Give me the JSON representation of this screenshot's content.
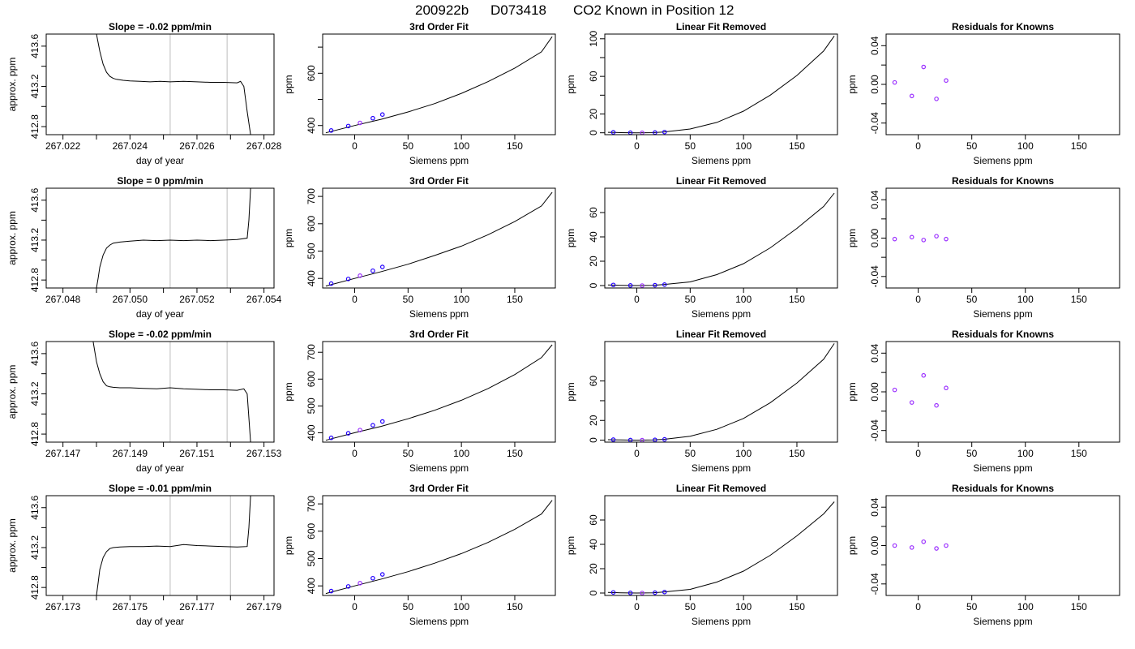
{
  "figure": {
    "title_parts": [
      "200922b",
      "D073418",
      "CO2 Known in Position  12"
    ],
    "colors": {
      "axis": "#000000",
      "line": "#000000",
      "point": "#2200ff",
      "point_alt": "#9b30ff",
      "vline": "#c8c8c8",
      "highlight": "#ff6060"
    }
  },
  "chart_data": [
    {
      "type": "line",
      "title": "Slope =  -0.02  ppm/min",
      "xlabel": "day of year",
      "ylabel": "approx. ppm",
      "xlim": [
        267.0215,
        267.0283
      ],
      "ylim": [
        412.72,
        413.72
      ],
      "xticks": [
        267.022,
        267.023,
        267.024,
        267.025,
        267.026,
        267.027,
        267.028
      ],
      "xtick_labels": [
        "267.022",
        "",
        "267.024",
        "",
        "267.026",
        "",
        "267.028"
      ],
      "yticks": [
        412.8,
        413.0,
        413.2,
        413.4,
        413.6
      ],
      "ytick_labels": [
        "412.8",
        "",
        "413.2",
        "",
        "413.6"
      ],
      "vlines": [
        267.0252,
        267.0269
      ],
      "series": [
        {
          "x": [
            267.023,
            267.0231,
            267.0232,
            267.0233,
            267.0234,
            267.0235,
            267.0236,
            267.0238,
            267.024,
            267.0243,
            267.0246,
            267.0249,
            267.0252,
            267.0256,
            267.026,
            267.0264,
            267.0268,
            267.0272,
            267.0273,
            267.0274,
            267.0275,
            267.0276
          ],
          "y": [
            413.72,
            413.55,
            413.42,
            413.34,
            413.3,
            413.28,
            413.27,
            413.26,
            413.255,
            413.25,
            413.245,
            413.25,
            413.245,
            413.25,
            413.245,
            413.24,
            413.24,
            413.235,
            413.25,
            413.2,
            412.95,
            412.72
          ]
        }
      ]
    },
    {
      "type": "line",
      "title": "3rd Order Fit",
      "xlabel": "Siemens ppm",
      "ylabel": "ppm",
      "xlim": [
        -30,
        188
      ],
      "ylim": [
        365,
        750
      ],
      "xticks": [
        0,
        50,
        100,
        150
      ],
      "yticks": [
        400,
        500,
        600,
        700
      ],
      "ytick_labels": [
        "400",
        "",
        "600",
        ""
      ],
      "series": [
        {
          "x": [
            -27,
            0,
            25,
            50,
            75,
            100,
            125,
            150,
            175,
            185
          ],
          "y": [
            372,
            400,
            424,
            452,
            484,
            523,
            568,
            620,
            682,
            740
          ]
        }
      ],
      "points": {
        "x": [
          -22,
          -6,
          5,
          17,
          26
        ],
        "y": [
          381,
          398,
          410,
          428,
          442
        ]
      }
    },
    {
      "type": "line",
      "title": "Linear Fit Removed",
      "xlabel": "Siemens ppm",
      "ylabel": "ppm",
      "xlim": [
        -30,
        188
      ],
      "ylim": [
        -2,
        105
      ],
      "xticks": [
        0,
        50,
        100,
        150
      ],
      "yticks": [
        0,
        20,
        40,
        60,
        80,
        100
      ],
      "ytick_labels": [
        "0",
        "20",
        "",
        "60",
        "",
        "100"
      ],
      "series": [
        {
          "x": [
            -27,
            -15,
            0,
            15,
            25,
            50,
            75,
            100,
            125,
            150,
            175,
            185
          ],
          "y": [
            0.5,
            0.2,
            0,
            0.2,
            0.8,
            4,
            11,
            23,
            40,
            61,
            87,
            103
          ]
        }
      ],
      "points": {
        "x": [
          -22,
          -6,
          5,
          17,
          26
        ],
        "y": [
          0.5,
          0.1,
          0,
          0.3,
          0.8
        ]
      }
    },
    {
      "type": "scatter",
      "title": "Residuals for Knowns",
      "xlabel": "Siemens ppm",
      "ylabel": "ppm",
      "xlim": [
        -30,
        188
      ],
      "ylim": [
        -0.052,
        0.052
      ],
      "xticks": [
        0,
        50,
        100,
        150
      ],
      "yticks": [
        -0.04,
        -0.02,
        0.0,
        0.02,
        0.04
      ],
      "ytick_labels": [
        "-0.04",
        "",
        "0.00",
        "",
        "0.04"
      ],
      "points": {
        "x": [
          -22,
          -6,
          5,
          17,
          26
        ],
        "y": [
          0.002,
          -0.012,
          0.018,
          -0.015,
          0.004
        ]
      }
    },
    {
      "type": "line",
      "title": "Slope =  0  ppm/min",
      "xlabel": "day of year",
      "ylabel": "approx. ppm",
      "xlim": [
        267.0475,
        267.0543
      ],
      "ylim": [
        412.72,
        413.72
      ],
      "xticks": [
        267.048,
        267.049,
        267.05,
        267.051,
        267.052,
        267.053,
        267.054
      ],
      "xtick_labels": [
        "267.048",
        "",
        "267.050",
        "",
        "267.052",
        "",
        "267.054"
      ],
      "yticks": [
        412.8,
        413.0,
        413.2,
        413.4,
        413.6
      ],
      "ytick_labels": [
        "412.8",
        "",
        "413.2",
        "",
        "413.6"
      ],
      "vlines": [
        267.0512,
        267.0529
      ],
      "series": [
        {
          "x": [
            267.049,
            267.04905,
            267.0491,
            267.0492,
            267.0493,
            267.0494,
            267.0495,
            267.0497,
            267.05,
            267.0504,
            267.0508,
            267.0512,
            267.0516,
            267.052,
            267.0524,
            267.0528,
            267.0532,
            267.0535,
            267.05355,
            267.0536
          ],
          "y": [
            412.72,
            412.82,
            412.93,
            413.05,
            413.12,
            413.15,
            413.17,
            413.18,
            413.19,
            413.2,
            413.195,
            413.2,
            413.195,
            413.2,
            413.195,
            413.2,
            413.205,
            413.22,
            413.4,
            413.72
          ]
        }
      ]
    },
    {
      "type": "line",
      "title": "3rd Order Fit",
      "xlabel": "Siemens ppm",
      "ylabel": "ppm",
      "xlim": [
        -30,
        188
      ],
      "ylim": [
        365,
        730
      ],
      "xticks": [
        0,
        50,
        100,
        150
      ],
      "yticks": [
        400,
        500,
        600,
        700
      ],
      "series": [
        {
          "x": [
            -27,
            0,
            25,
            50,
            75,
            100,
            125,
            150,
            175,
            185
          ],
          "y": [
            372,
            400,
            425,
            452,
            484,
            518,
            560,
            608,
            665,
            715
          ]
        }
      ],
      "points": {
        "x": [
          -22,
          -6,
          5,
          17,
          26
        ],
        "y": [
          381,
          398,
          410,
          428,
          442
        ]
      }
    },
    {
      "type": "line",
      "title": "Linear Fit Removed",
      "xlabel": "Siemens ppm",
      "ylabel": "ppm",
      "xlim": [
        -30,
        188
      ],
      "ylim": [
        -2,
        80
      ],
      "xticks": [
        0,
        50,
        100,
        150
      ],
      "yticks": [
        0,
        20,
        40,
        60
      ],
      "series": [
        {
          "x": [
            -27,
            -15,
            0,
            15,
            25,
            50,
            75,
            100,
            125,
            150,
            175,
            185
          ],
          "y": [
            0.5,
            0.2,
            0,
            0.2,
            0.8,
            3,
            9,
            18,
            31,
            47,
            65,
            76
          ]
        }
      ],
      "points": {
        "x": [
          -22,
          -6,
          5,
          17,
          26
        ],
        "y": [
          0.5,
          0.1,
          0,
          0.3,
          0.8
        ]
      }
    },
    {
      "type": "scatter",
      "title": "Residuals for Knowns",
      "xlabel": "Siemens ppm",
      "ylabel": "ppm",
      "xlim": [
        -30,
        188
      ],
      "ylim": [
        -0.052,
        0.052
      ],
      "xticks": [
        0,
        50,
        100,
        150
      ],
      "yticks": [
        -0.04,
        -0.02,
        0.0,
        0.02,
        0.04
      ],
      "ytick_labels": [
        "-0.04",
        "",
        "0.00",
        "",
        "0.04"
      ],
      "points": {
        "x": [
          -22,
          -6,
          5,
          17,
          26
        ],
        "y": [
          -0.001,
          0.001,
          -0.002,
          0.002,
          -0.001
        ]
      }
    },
    {
      "type": "line",
      "title": "Slope =  -0.02  ppm/min",
      "xlabel": "day of year",
      "ylabel": "approx. ppm",
      "xlim": [
        267.1465,
        267.1533
      ],
      "ylim": [
        412.72,
        413.72
      ],
      "xticks": [
        267.147,
        267.148,
        267.149,
        267.15,
        267.151,
        267.152,
        267.153
      ],
      "xtick_labels": [
        "267.147",
        "",
        "267.149",
        "",
        "267.151",
        "",
        "267.153"
      ],
      "yticks": [
        412.8,
        413.0,
        413.2,
        413.4,
        413.6
      ],
      "ytick_labels": [
        "412.8",
        "",
        "413.2",
        "",
        "413.6"
      ],
      "vlines": [
        267.1502,
        267.1519
      ],
      "series": [
        {
          "x": [
            267.1479,
            267.148,
            267.1481,
            267.1482,
            267.1483,
            267.1484,
            267.1485,
            267.1487,
            267.149,
            267.1494,
            267.1498,
            267.1502,
            267.1506,
            267.151,
            267.1514,
            267.1518,
            267.1522,
            267.1524,
            267.1525,
            267.1526
          ],
          "y": [
            413.72,
            413.52,
            413.4,
            413.32,
            413.28,
            413.27,
            413.265,
            413.26,
            413.26,
            413.255,
            413.25,
            413.26,
            413.25,
            413.245,
            413.24,
            413.24,
            413.235,
            413.25,
            413.2,
            412.72
          ]
        }
      ]
    },
    {
      "type": "line",
      "title": "3rd Order Fit",
      "xlabel": "Siemens ppm",
      "ylabel": "ppm",
      "xlim": [
        -30,
        188
      ],
      "ylim": [
        365,
        740
      ],
      "xticks": [
        0,
        50,
        100,
        150
      ],
      "yticks": [
        400,
        500,
        600,
        700
      ],
      "series": [
        {
          "x": [
            -27,
            0,
            25,
            50,
            75,
            100,
            125,
            150,
            175,
            185
          ],
          "y": [
            372,
            400,
            424,
            452,
            484,
            521,
            565,
            617,
            680,
            728
          ]
        }
      ],
      "points": {
        "x": [
          -22,
          -6,
          5,
          17,
          26
        ],
        "y": [
          381,
          398,
          410,
          428,
          442
        ]
      }
    },
    {
      "type": "line",
      "title": "Linear Fit Removed",
      "xlabel": "Siemens ppm",
      "ylabel": "ppm",
      "xlim": [
        -30,
        188
      ],
      "ylim": [
        -2,
        100
      ],
      "xticks": [
        0,
        50,
        100,
        150
      ],
      "yticks": [
        0,
        20,
        40,
        60
      ],
      "ytick_labels": [
        "0",
        "20",
        "",
        "60"
      ],
      "series": [
        {
          "x": [
            -27,
            -15,
            0,
            15,
            25,
            50,
            75,
            100,
            125,
            150,
            175,
            185
          ],
          "y": [
            0.5,
            0.2,
            0,
            0.2,
            0.8,
            4,
            11,
            22,
            38,
            58,
            82,
            98
          ]
        }
      ],
      "points": {
        "x": [
          -22,
          -6,
          5,
          17,
          26
        ],
        "y": [
          0.5,
          0.1,
          0,
          0.3,
          0.8
        ]
      }
    },
    {
      "type": "scatter",
      "title": "Residuals for Knowns",
      "xlabel": "Siemens ppm",
      "ylabel": "ppm",
      "xlim": [
        -30,
        188
      ],
      "ylim": [
        -0.052,
        0.052
      ],
      "xticks": [
        0,
        50,
        100,
        150
      ],
      "yticks": [
        -0.04,
        -0.02,
        0.0,
        0.02,
        0.04
      ],
      "ytick_labels": [
        "-0.04",
        "",
        "0.00",
        "",
        "0.04"
      ],
      "points": {
        "x": [
          -22,
          -6,
          5,
          17,
          26
        ],
        "y": [
          0.002,
          -0.011,
          0.017,
          -0.014,
          0.004
        ]
      }
    },
    {
      "type": "line",
      "title": "Slope =  -0.01  ppm/min",
      "xlabel": "day of year",
      "ylabel": "approx. ppm",
      "xlim": [
        267.1725,
        267.1793
      ],
      "ylim": [
        412.72,
        413.72
      ],
      "xticks": [
        267.173,
        267.174,
        267.175,
        267.176,
        267.177,
        267.178,
        267.179
      ],
      "xtick_labels": [
        "267.173",
        "",
        "267.175",
        "",
        "267.177",
        "",
        "267.179"
      ],
      "yticks": [
        412.8,
        413.0,
        413.2,
        413.4,
        413.6
      ],
      "ytick_labels": [
        "412.8",
        "",
        "413.2",
        "",
        "413.6"
      ],
      "vlines": [
        267.1762,
        267.178
      ],
      "series": [
        {
          "x": [
            267.174,
            267.17405,
            267.1741,
            267.1742,
            267.1743,
            267.1744,
            267.1745,
            267.1747,
            267.175,
            267.1754,
            267.1758,
            267.1762,
            267.1766,
            267.177,
            267.1774,
            267.1778,
            267.1782,
            267.1785,
            267.17855,
            267.1786
          ],
          "y": [
            412.72,
            412.85,
            412.98,
            413.1,
            413.16,
            413.19,
            413.2,
            413.205,
            413.21,
            413.21,
            413.215,
            413.21,
            413.23,
            413.22,
            413.215,
            413.21,
            413.205,
            413.21,
            413.4,
            413.72
          ]
        }
      ]
    },
    {
      "type": "line",
      "title": "3rd Order Fit",
      "xlabel": "Siemens ppm",
      "ylabel": "ppm",
      "xlim": [
        -30,
        188
      ],
      "ylim": [
        365,
        730
      ],
      "xticks": [
        0,
        50,
        100,
        150
      ],
      "yticks": [
        400,
        500,
        600,
        700
      ],
      "series": [
        {
          "x": [
            -27,
            0,
            25,
            50,
            75,
            100,
            125,
            150,
            175,
            185
          ],
          "y": [
            372,
            400,
            425,
            452,
            483,
            518,
            559,
            607,
            663,
            713
          ]
        }
      ],
      "points": {
        "x": [
          -22,
          -6,
          5,
          17,
          26
        ],
        "y": [
          381,
          398,
          410,
          428,
          442
        ]
      }
    },
    {
      "type": "line",
      "title": "Linear Fit Removed",
      "xlabel": "Siemens ppm",
      "ylabel": "ppm",
      "xlim": [
        -30,
        188
      ],
      "ylim": [
        -2,
        80
      ],
      "xticks": [
        0,
        50,
        100,
        150
      ],
      "yticks": [
        0,
        20,
        40,
        60
      ],
      "series": [
        {
          "x": [
            -27,
            -15,
            0,
            15,
            25,
            50,
            75,
            100,
            125,
            150,
            175,
            185
          ],
          "y": [
            0.5,
            0.2,
            0,
            0.2,
            0.8,
            3,
            9,
            18,
            31,
            47,
            65,
            75
          ]
        }
      ],
      "points": {
        "x": [
          -22,
          -6,
          5,
          17,
          26
        ],
        "y": [
          0.5,
          0.1,
          0,
          0.3,
          0.8
        ]
      }
    },
    {
      "type": "scatter",
      "title": "Residuals for Knowns",
      "xlabel": "Siemens ppm",
      "ylabel": "ppm",
      "xlim": [
        -30,
        188
      ],
      "ylim": [
        -0.052,
        0.052
      ],
      "xticks": [
        0,
        50,
        100,
        150
      ],
      "yticks": [
        -0.04,
        -0.02,
        0.0,
        0.02,
        0.04
      ],
      "ytick_labels": [
        "-0.04",
        "",
        "0.00",
        "",
        "0.04"
      ],
      "points": {
        "x": [
          -22,
          -6,
          5,
          17,
          26
        ],
        "y": [
          0.0,
          -0.002,
          0.004,
          -0.003,
          0.0
        ]
      }
    }
  ]
}
